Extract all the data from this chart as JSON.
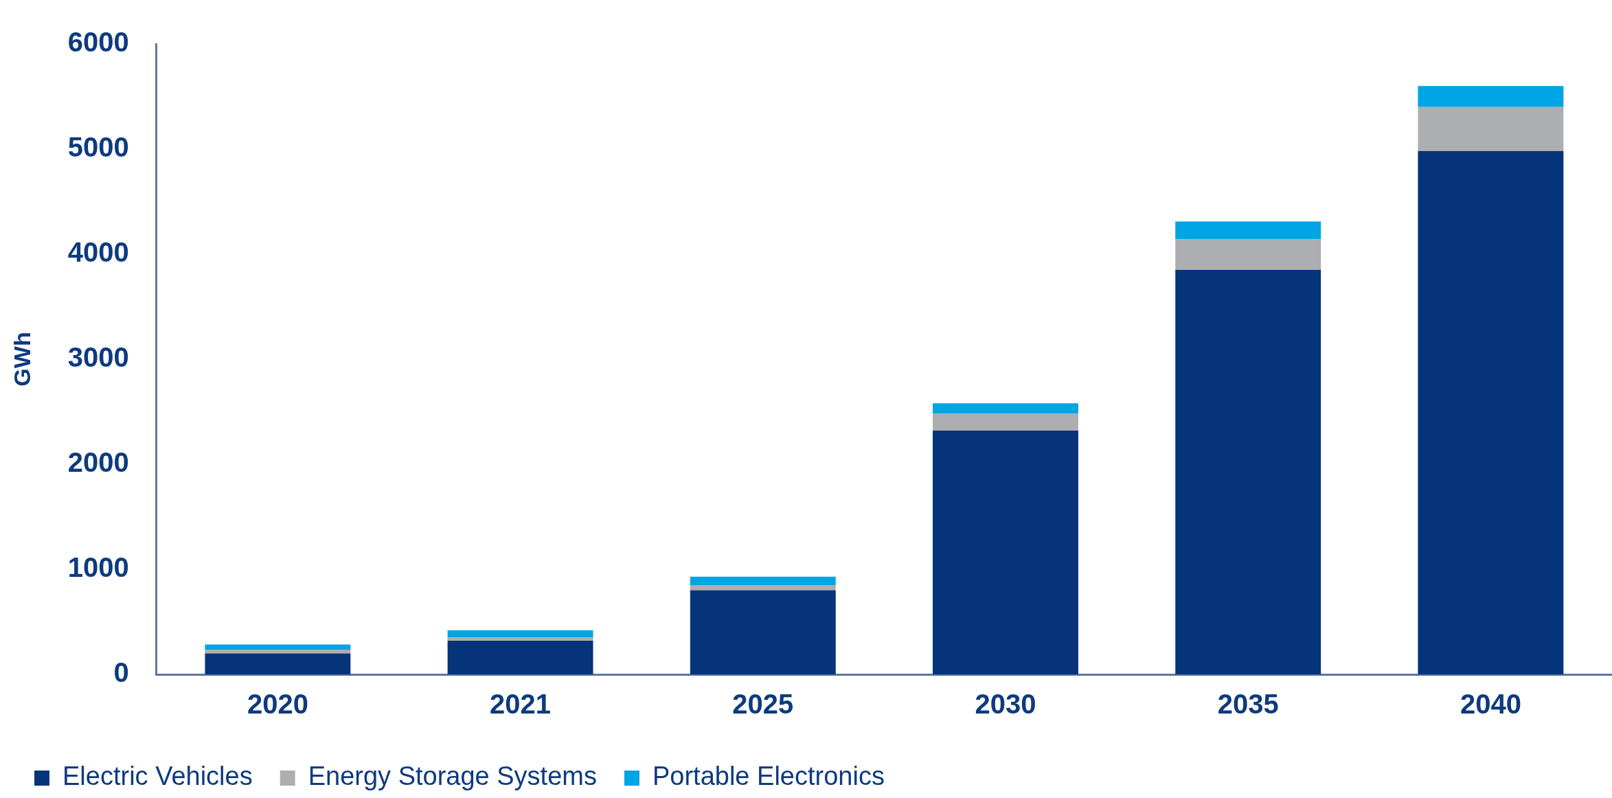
{
  "chart_data": {
    "type": "bar",
    "stacked": true,
    "ylabel": "GWh",
    "categories": [
      "2020",
      "2021",
      "2025",
      "2030",
      "2035",
      "2040"
    ],
    "series": [
      {
        "name": "Electric Vehicles",
        "color": "#06347a",
        "values": [
          200,
          320,
          800,
          2320,
          3850,
          4980
        ]
      },
      {
        "name": "Energy Storage Systems",
        "color": "#adaeb1",
        "values": [
          35,
          30,
          50,
          160,
          290,
          420
        ]
      },
      {
        "name": "Portable Electronics",
        "color": "#00a5e3",
        "values": [
          50,
          70,
          80,
          100,
          170,
          200
        ]
      }
    ],
    "ylim": [
      0,
      6000
    ],
    "yticks": [
      0,
      1000,
      2000,
      3000,
      4000,
      5000,
      6000
    ],
    "grid": false,
    "legend": "bottom"
  }
}
